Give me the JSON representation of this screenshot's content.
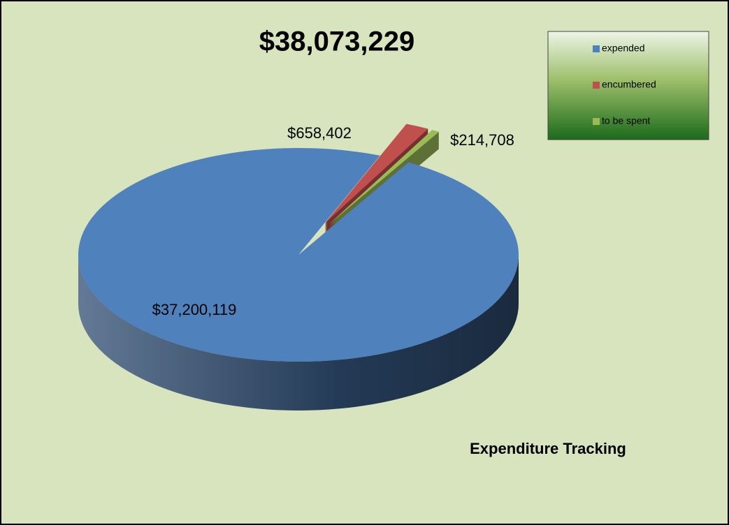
{
  "chart_data": {
    "type": "pie",
    "title": "$38,073,229",
    "caption": "Expenditure Tracking",
    "categories": [
      "expended",
      "encumbered",
      "to be spent"
    ],
    "values": [
      37200119,
      658402,
      214708
    ],
    "value_labels": [
      "$37,200,119",
      "$658,402",
      "$214,708"
    ],
    "colors": [
      "#4f81bd",
      "#c0504d",
      "#9bbb59"
    ],
    "legend": "top-right"
  }
}
